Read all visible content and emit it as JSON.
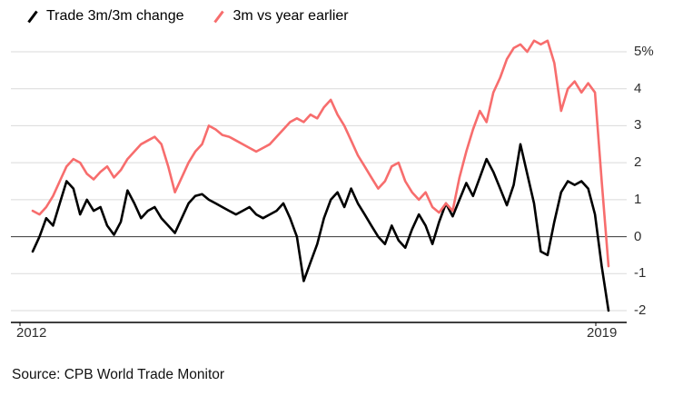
{
  "footer": {
    "source": "Source: CPB World Trade Monitor"
  },
  "chart_data": {
    "type": "line",
    "title": "",
    "xlabel": "",
    "ylabel": "",
    "legend_position": "top-left",
    "grid": "horizontal",
    "zero_line": true,
    "background": "#ffffff",
    "xticks": [
      "2012",
      "2019"
    ],
    "yticks": [
      5,
      4,
      3,
      2,
      1,
      0,
      -1,
      -2
    ],
    "ytick_labels": [
      "5%",
      "4",
      "3",
      "2",
      "1",
      "0",
      "-1",
      "-2"
    ],
    "ylim": [
      -2,
      5.5
    ],
    "x_axis": {
      "start_label": "2012",
      "end_label": "2019"
    },
    "series": [
      {
        "name": "Trade 3m/3m change",
        "color": "#000000",
        "values": [
          -0.4,
          0,
          0.5,
          0.3,
          0.9,
          1.5,
          1.3,
          0.6,
          1,
          0.7,
          0.8,
          0.3,
          0.05,
          0.4,
          1.25,
          0.9,
          0.5,
          0.7,
          0.8,
          0.5,
          0.3,
          0.1,
          0.5,
          0.9,
          1.1,
          1.15,
          1,
          0.9,
          0.8,
          0.7,
          0.6,
          0.7,
          0.8,
          0.6,
          0.5,
          0.6,
          0.7,
          0.9,
          0.5,
          0,
          -1.2,
          -0.7,
          -0.2,
          0.5,
          1,
          1.2,
          0.8,
          1.3,
          0.9,
          0.6,
          0.3,
          0,
          -0.2,
          0.3,
          -0.1,
          -0.3,
          0.2,
          0.6,
          0.3,
          -0.2,
          0.4,
          0.9,
          0.55,
          1,
          1.45,
          1.1,
          1.6,
          2.1,
          1.75,
          1.3,
          0.85,
          1.4,
          2.5,
          1.7,
          0.9,
          -0.4,
          -0.5,
          0.4,
          1.2,
          1.5,
          1.4,
          1.5,
          1.3,
          0.6,
          -0.8,
          -2
        ]
      },
      {
        "name": "3m vs year earlier",
        "color": "#f76d6d",
        "values": [
          0.7,
          0.6,
          0.8,
          1.1,
          1.5,
          1.9,
          2.1,
          2,
          1.7,
          1.55,
          1.75,
          1.9,
          1.6,
          1.8,
          2.1,
          2.3,
          2.5,
          2.6,
          2.7,
          2.5,
          1.9,
          1.2,
          1.6,
          2,
          2.3,
          2.5,
          3,
          2.9,
          2.75,
          2.7,
          2.6,
          2.5,
          2.4,
          2.3,
          2.4,
          2.5,
          2.7,
          2.9,
          3.1,
          3.2,
          3.1,
          3.3,
          3.2,
          3.5,
          3.7,
          3.3,
          3,
          2.6,
          2.2,
          1.9,
          1.6,
          1.3,
          1.5,
          1.9,
          2,
          1.5,
          1.2,
          1,
          1.2,
          0.8,
          0.65,
          0.9,
          0.7,
          1.6,
          2.3,
          2.9,
          3.4,
          3.1,
          3.9,
          4.3,
          4.8,
          5.1,
          5.2,
          5,
          5.3,
          5.2,
          5.3,
          4.7,
          3.4,
          4,
          4.2,
          3.9,
          4.15,
          3.9,
          1.5,
          -0.8
        ]
      }
    ]
  }
}
